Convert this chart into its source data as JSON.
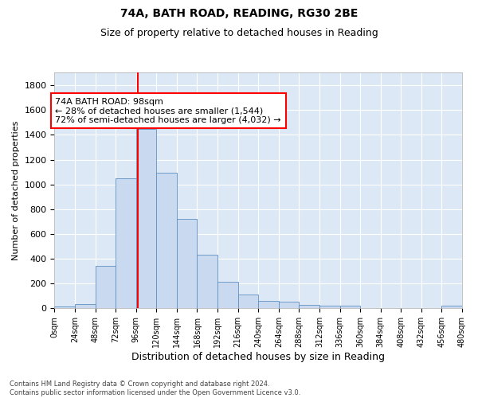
{
  "title_line1": "74A, BATH ROAD, READING, RG30 2BE",
  "title_line2": "Size of property relative to detached houses in Reading",
  "xlabel": "Distribution of detached houses by size in Reading",
  "ylabel": "Number of detached properties",
  "bin_edges": [
    0,
    24,
    48,
    72,
    96,
    120,
    144,
    168,
    192,
    216,
    240,
    264,
    288,
    312,
    336,
    360,
    384,
    408,
    432,
    456,
    480
  ],
  "bar_heights": [
    15,
    35,
    345,
    1050,
    1450,
    1095,
    725,
    435,
    215,
    110,
    60,
    55,
    30,
    20,
    20,
    5,
    5,
    5,
    5,
    20
  ],
  "bar_color": "#c9d9f0",
  "bar_edge_color": "#6090c0",
  "vline_x": 98,
  "vline_color": "red",
  "annotation_text": "74A BATH ROAD: 98sqm\n← 28% of detached houses are smaller (1,544)\n72% of semi-detached houses are larger (4,032) →",
  "annotation_box_color": "white",
  "annotation_box_edge": "red",
  "ylim": [
    0,
    1900
  ],
  "xlim": [
    0,
    480
  ],
  "yticks": [
    0,
    200,
    400,
    600,
    800,
    1000,
    1200,
    1400,
    1600,
    1800
  ],
  "xtick_labels": [
    "0sqm",
    "24sqm",
    "48sqm",
    "72sqm",
    "96sqm",
    "120sqm",
    "144sqm",
    "168sqm",
    "192sqm",
    "216sqm",
    "240sqm",
    "264sqm",
    "288sqm",
    "312sqm",
    "336sqm",
    "360sqm",
    "384sqm",
    "408sqm",
    "432sqm",
    "456sqm",
    "480sqm"
  ],
  "footer_text": "Contains HM Land Registry data © Crown copyright and database right 2024.\nContains public sector information licensed under the Open Government Licence v3.0.",
  "fig_bg_color": "#ffffff",
  "plot_bg_color": "#dce8f5",
  "grid_color": "#ffffff",
  "title1_fontsize": 10,
  "title2_fontsize": 9,
  "ylabel_fontsize": 8,
  "xlabel_fontsize": 9,
  "ytick_fontsize": 8,
  "xtick_fontsize": 7,
  "footer_fontsize": 6,
  "annotation_fontsize": 8
}
